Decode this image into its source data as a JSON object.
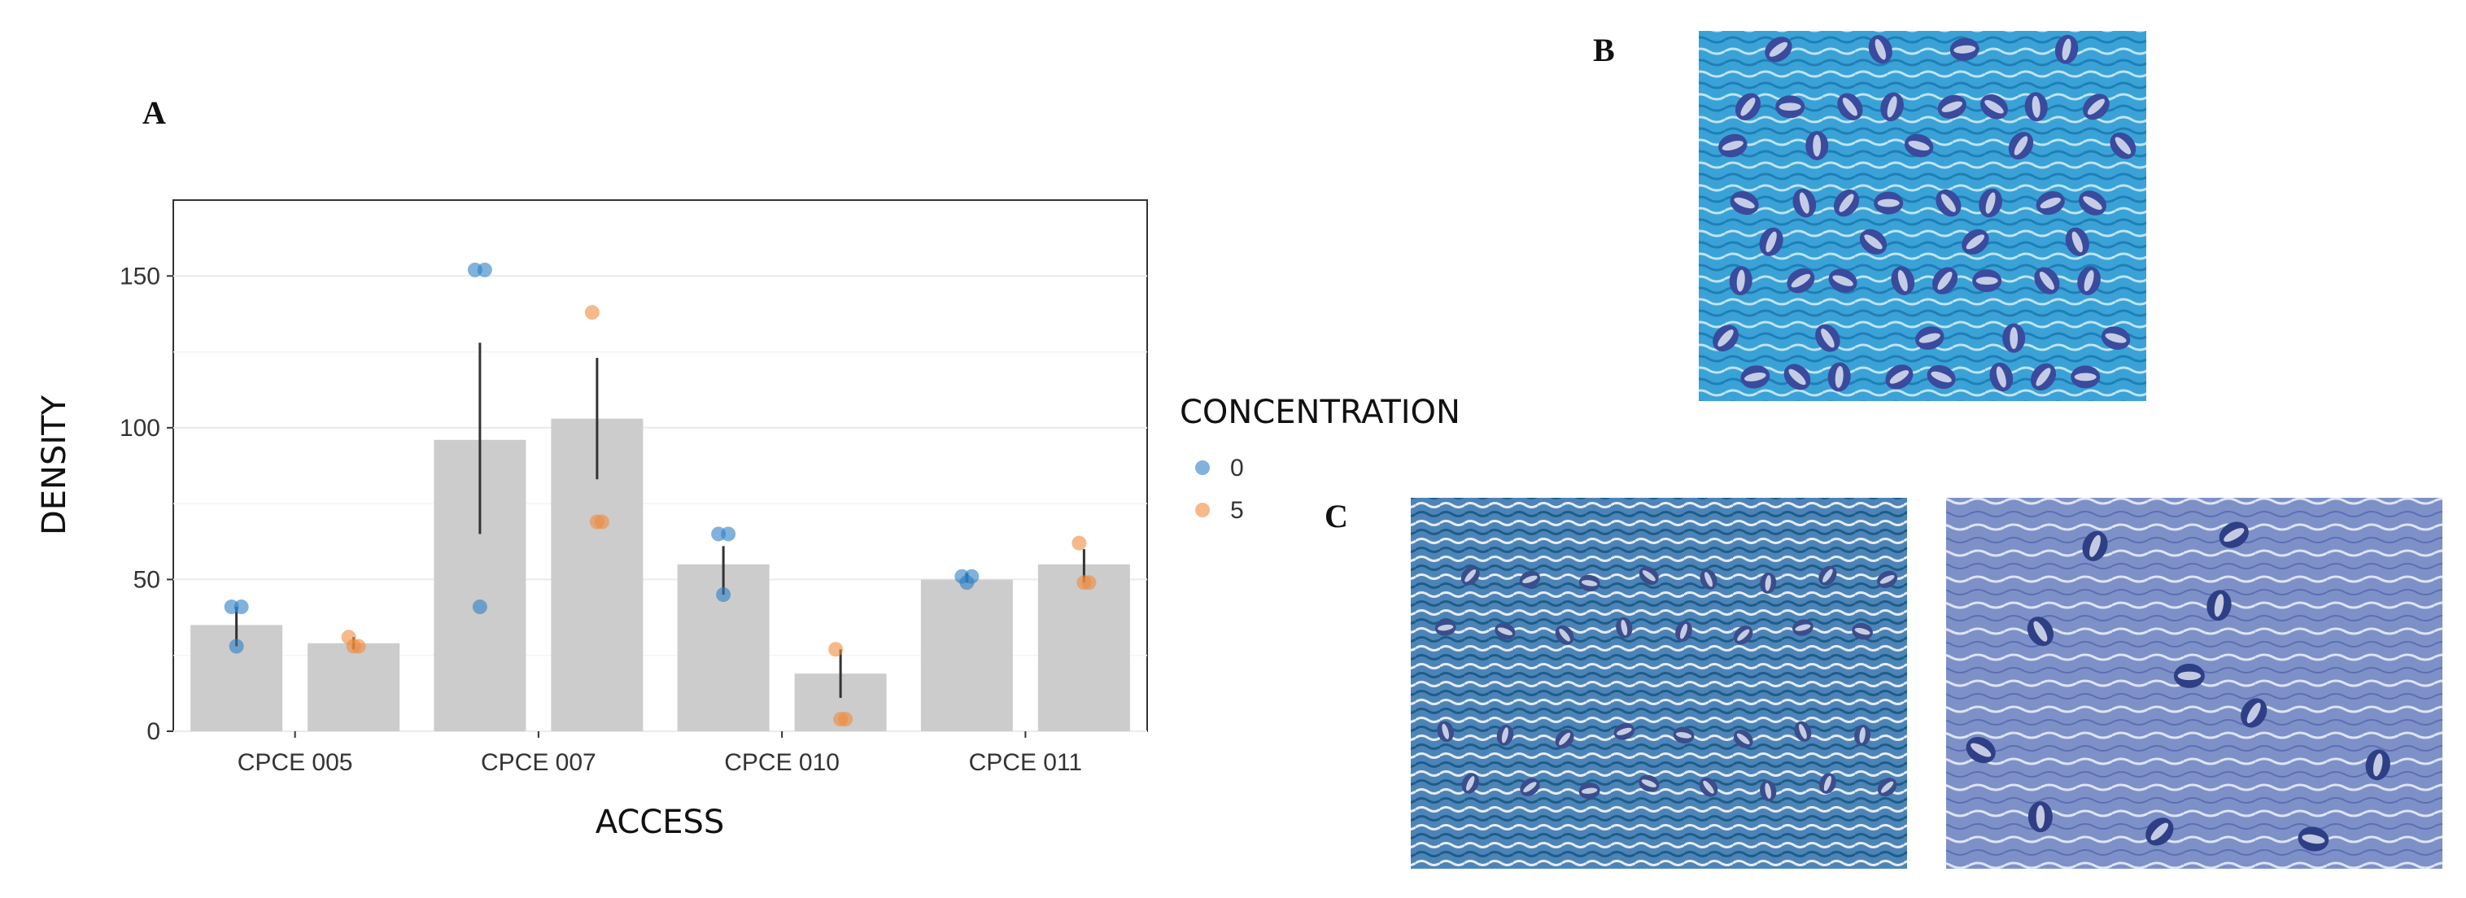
{
  "panels": {
    "a": "A",
    "b": "B",
    "c": "C"
  },
  "chart_data": {
    "type": "bar",
    "xlabel": "ACCESS",
    "ylabel": "DENSITY",
    "categories": [
      "CPCE 005",
      "CPCE 007",
      "CPCE 010",
      "CPCE 011"
    ],
    "ylim": [
      0,
      175
    ],
    "yticks": [
      0,
      50,
      100,
      150
    ],
    "grid": true,
    "legend": {
      "title": "CONCENTRATION",
      "position": "right"
    },
    "bar_color": "#cccccc",
    "series": [
      {
        "name": "0",
        "color": "#2b7fc4",
        "values": [
          35,
          96,
          55,
          50
        ],
        "error_low": [
          28,
          65,
          45,
          49
        ],
        "error_high": [
          41,
          128,
          61,
          52
        ],
        "points": [
          [
            41,
            41,
            28
          ],
          [
            152,
            152,
            41
          ],
          [
            65,
            65,
            45
          ],
          [
            51,
            51,
            49
          ]
        ]
      },
      {
        "name": "5",
        "color": "#f08a3c",
        "values": [
          29,
          103,
          19,
          55
        ],
        "error_low": [
          27,
          83,
          11,
          49
        ],
        "error_high": [
          31,
          123,
          27,
          60
        ],
        "points": [
          [
            31,
            28,
            28
          ],
          [
            138,
            69,
            69
          ],
          [
            27,
            4,
            4
          ],
          [
            62,
            49,
            49
          ]
        ]
      }
    ]
  },
  "images": {
    "b": {
      "kind": "micrograph",
      "stain": "#3aa2d6",
      "cell_color": "#3a4a9c"
    },
    "c_left": {
      "kind": "micrograph",
      "stain": "#4d84b8",
      "cell_color": "#3b4d8a"
    },
    "c_right": {
      "kind": "micrograph",
      "stain": "#7d90c8",
      "cell_color": "#2f3f86"
    }
  }
}
